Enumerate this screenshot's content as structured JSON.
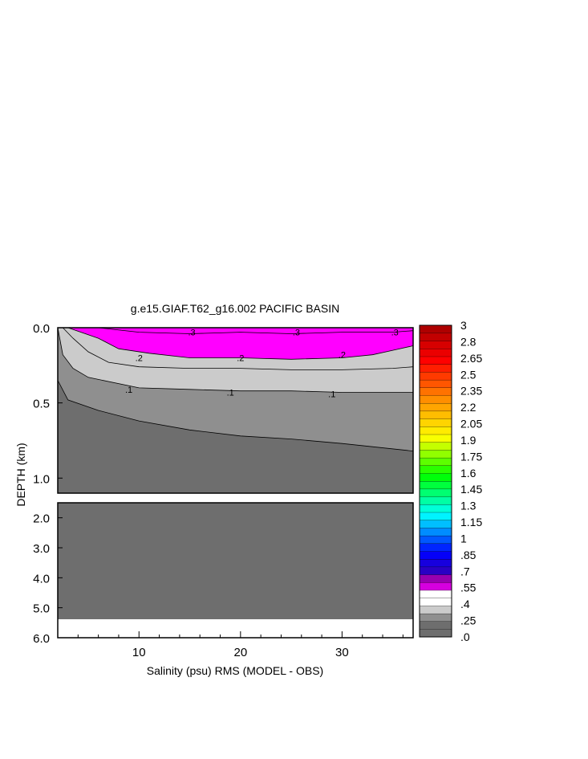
{
  "chart_data": {
    "type": "contour",
    "title": "g.e15.GIAF.T62_g16.002 PACIFIC BASIN",
    "xlabel": "Salinity (psu) RMS (MODEL - OBS)",
    "ylabel": "DEPTH (km)",
    "x_ticks": [
      "10",
      "20",
      "30"
    ],
    "x_tick_values": [
      10,
      20,
      30
    ],
    "xlim": [
      2,
      37
    ],
    "upper_panel": {
      "ylim": [
        0.0,
        1.1
      ],
      "y_ticks": [
        "0.0",
        "0.5",
        "1.0"
      ],
      "y_tick_values": [
        0.0,
        0.5,
        1.0
      ]
    },
    "lower_panel": {
      "ylim": [
        1.5,
        6.0
      ],
      "y_ticks": [
        "2.0",
        "3.0",
        "4.0",
        "5.0",
        "6.0"
      ],
      "y_tick_values": [
        2.0,
        3.0,
        4.0,
        5.0,
        6.0
      ],
      "bottom_depth": 5.35
    },
    "contour_labels": [
      {
        "text": ".3",
        "x": 15.2,
        "y": 0.03
      },
      {
        "text": ".3",
        "x": 25.5,
        "y": 0.03
      },
      {
        "text": ".3",
        "x": 35.2,
        "y": 0.03
      },
      {
        "text": ".2",
        "x": 10.0,
        "y": 0.2
      },
      {
        "text": ".2",
        "x": 20.0,
        "y": 0.2
      },
      {
        "text": ".2",
        "x": 30.0,
        "y": 0.18
      },
      {
        "text": ".1",
        "x": 9.0,
        "y": 0.41
      },
      {
        "text": ".1",
        "x": 19.0,
        "y": 0.43
      },
      {
        "text": ".1",
        "x": 29.0,
        "y": 0.44
      }
    ],
    "contours": {
      "c01": [
        [
          2,
          0.0
        ],
        [
          2.5,
          0.18
        ],
        [
          3.5,
          0.27
        ],
        [
          5,
          0.33
        ],
        [
          10,
          0.4
        ],
        [
          15,
          0.41
        ],
        [
          20,
          0.42
        ],
        [
          25,
          0.42
        ],
        [
          30,
          0.43
        ],
        [
          37,
          0.43
        ]
      ],
      "c02": [
        [
          2.5,
          0.0
        ],
        [
          3.5,
          0.07
        ],
        [
          5,
          0.16
        ],
        [
          7,
          0.23
        ],
        [
          10,
          0.26
        ],
        [
          15,
          0.27
        ],
        [
          20,
          0.27
        ],
        [
          25,
          0.28
        ],
        [
          30,
          0.28
        ],
        [
          35,
          0.27
        ],
        [
          37,
          0.26
        ]
      ],
      "c03": [
        [
          3,
          0.0
        ],
        [
          6,
          0.07
        ],
        [
          8,
          0.14
        ],
        [
          11,
          0.17
        ],
        [
          15,
          0.2
        ],
        [
          20,
          0.2
        ],
        [
          25,
          0.21
        ],
        [
          30,
          0.2
        ],
        [
          33,
          0.18
        ],
        [
          35,
          0.15
        ],
        [
          37,
          0.12
        ]
      ],
      "c04": [
        [
          6,
          0.0
        ],
        [
          10,
          0.03
        ],
        [
          15,
          0.04
        ],
        [
          20,
          0.03
        ],
        [
          25,
          0.04
        ],
        [
          30,
          0.03
        ],
        [
          35,
          0.03
        ],
        [
          37,
          0.02
        ]
      ],
      "shelf": [
        [
          2,
          0.35
        ],
        [
          3,
          0.48
        ],
        [
          6,
          0.55
        ],
        [
          10,
          0.62
        ],
        [
          15,
          0.68
        ],
        [
          20,
          0.72
        ],
        [
          25,
          0.74
        ],
        [
          30,
          0.77
        ],
        [
          37,
          0.82
        ]
      ]
    },
    "colorbar": {
      "labels": [
        "3",
        "2.8",
        "2.65",
        "2.5",
        "2.35",
        "2.2",
        "2.05",
        "1.9",
        "1.75",
        "1.6",
        "1.45",
        "1.3",
        "1.15",
        "1",
        ".85",
        ".7",
        ".55",
        ".4",
        ".25",
        ".0"
      ],
      "levels_range": [
        0,
        3
      ],
      "bands": 40
    },
    "colors": {
      "below_01": "#6e6e6e",
      "band_01_02": "#8f8f8f",
      "band_02_03": "#cbcbcb",
      "band_03_04": "#ff00ff",
      "bands_high": [
        "#5a0080",
        "#0000ff",
        "#00ffff",
        "#00ff00",
        "#ffff00",
        "#ff8c00",
        "#ff0000",
        "#990000"
      ]
    }
  }
}
